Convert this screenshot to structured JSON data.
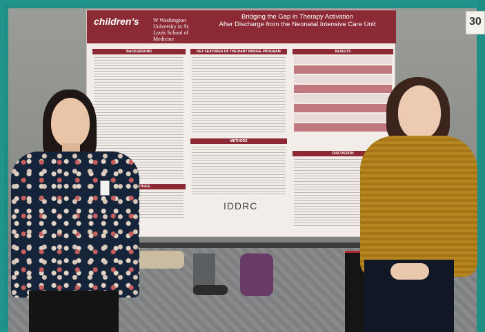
{
  "poster": {
    "logo_text": "children's",
    "uw_logo_text": "W Washington University in St. Louis School of Medicine",
    "title_line1": "Bridging the Gap in Therapy Activation",
    "title_line2": "After Discharge from the Neonatal Intensive Care Unit",
    "section_background": "BACKGROUND",
    "section_key_features": "KEY FEATURES OF THE BABY BRIDGE PROGRAM",
    "section_results": "RESULTS",
    "section_methods": "METHODS",
    "section_objectives": "OBJECTIVES",
    "section_discussion": "DISCUSSION",
    "sponsor_logo": "IDDRC"
  },
  "corner_sign": {
    "number": "30"
  },
  "colors": {
    "frame": "#1f948a",
    "poster_header": "#8b2a34",
    "poster_bg": "#f2ede8",
    "sweater": "#b68520"
  }
}
